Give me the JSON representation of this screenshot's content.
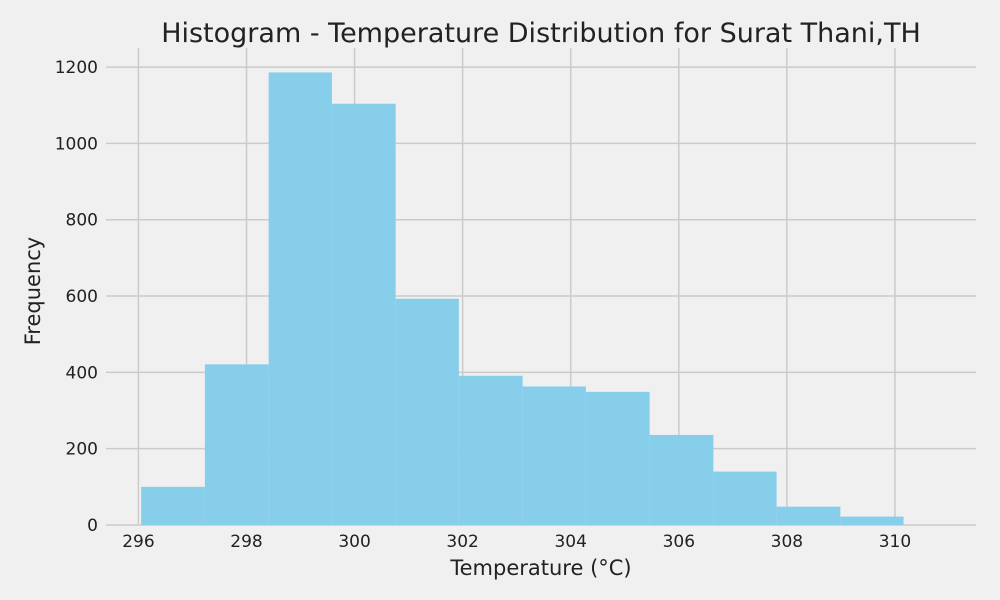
{
  "chart_data": {
    "type": "bar",
    "title": "Histogram - Temperature Distribution for Surat Thani,TH",
    "xlabel": "Temperature (°C)",
    "ylabel": "Frequency",
    "bin_edges": [
      296.05,
      297.23,
      298.41,
      299.58,
      300.76,
      301.93,
      303.11,
      304.28,
      305.46,
      306.64,
      307.81,
      308.99,
      310.16
    ],
    "values": [
      100,
      421,
      1186,
      1104,
      593,
      391,
      363,
      349,
      236,
      140,
      48,
      22
    ],
    "xlim": [
      295.4,
      311.5
    ],
    "ylim": [
      0,
      1250
    ],
    "xticks": [
      296,
      298,
      300,
      302,
      304,
      306,
      308,
      310
    ],
    "yticks": [
      0,
      200,
      400,
      600,
      800,
      1000,
      1200
    ],
    "bar_color": "#87ceeb",
    "grid": true,
    "legend": "none"
  }
}
